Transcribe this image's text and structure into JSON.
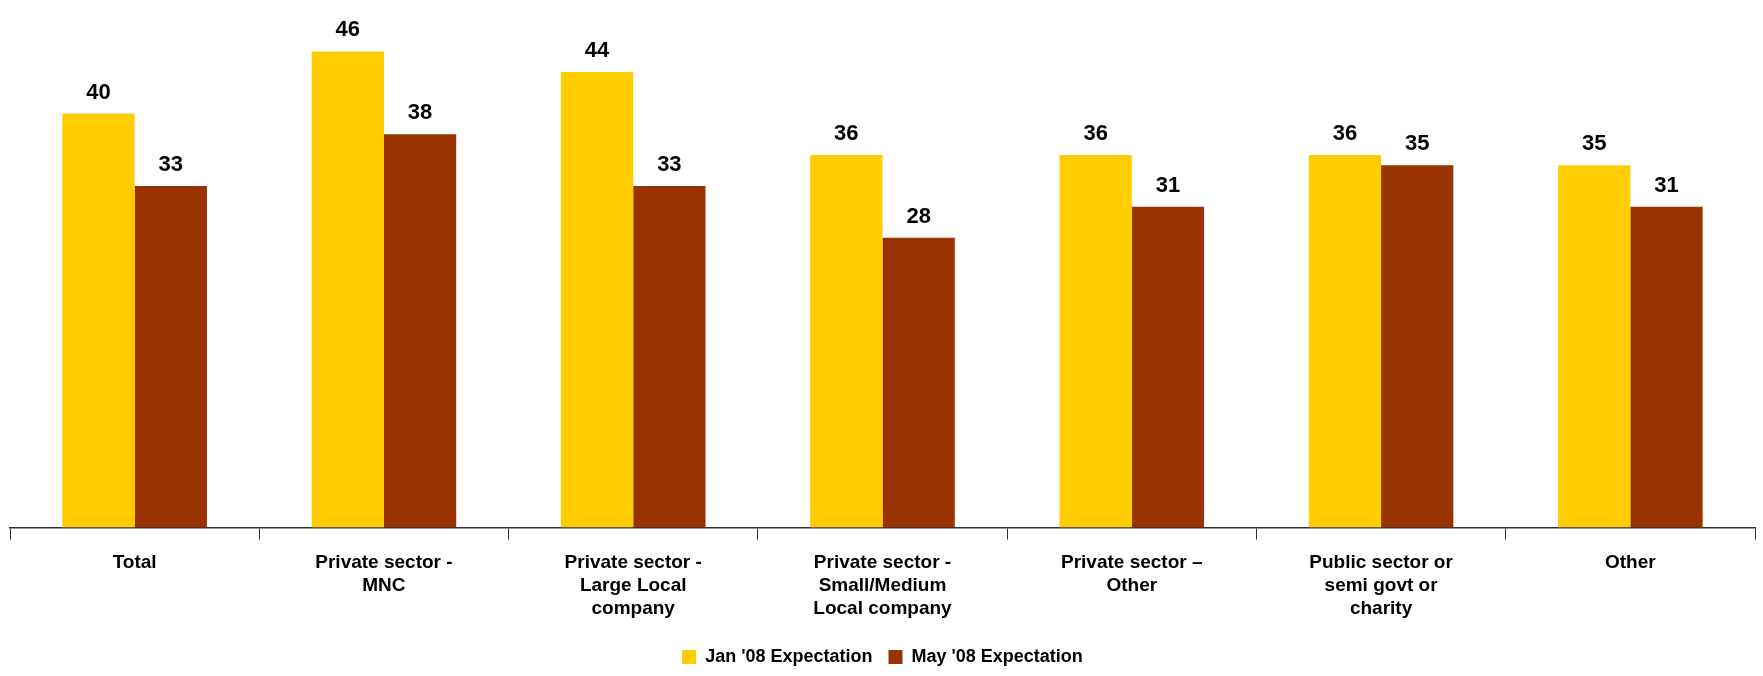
{
  "chart_data": {
    "type": "bar",
    "categories": [
      "Total",
      "Private sector - MNC",
      "Private sector - Large Local company",
      "Private sector - Small/Medium Local company",
      "Private sector – Other",
      "Public sector or semi govt or charity",
      "Other"
    ],
    "series": [
      {
        "name": "Jan '08 Expectation",
        "color": "#ffcc00",
        "values": [
          40,
          46,
          44,
          36,
          36,
          36,
          35
        ]
      },
      {
        "name": "May '08 Expectation",
        "color": "#993300",
        "values": [
          33,
          38,
          33,
          28,
          31,
          35,
          31
        ]
      }
    ],
    "data_labels": true,
    "legend": "bottom",
    "grid": false,
    "tick_labels": "x"
  }
}
